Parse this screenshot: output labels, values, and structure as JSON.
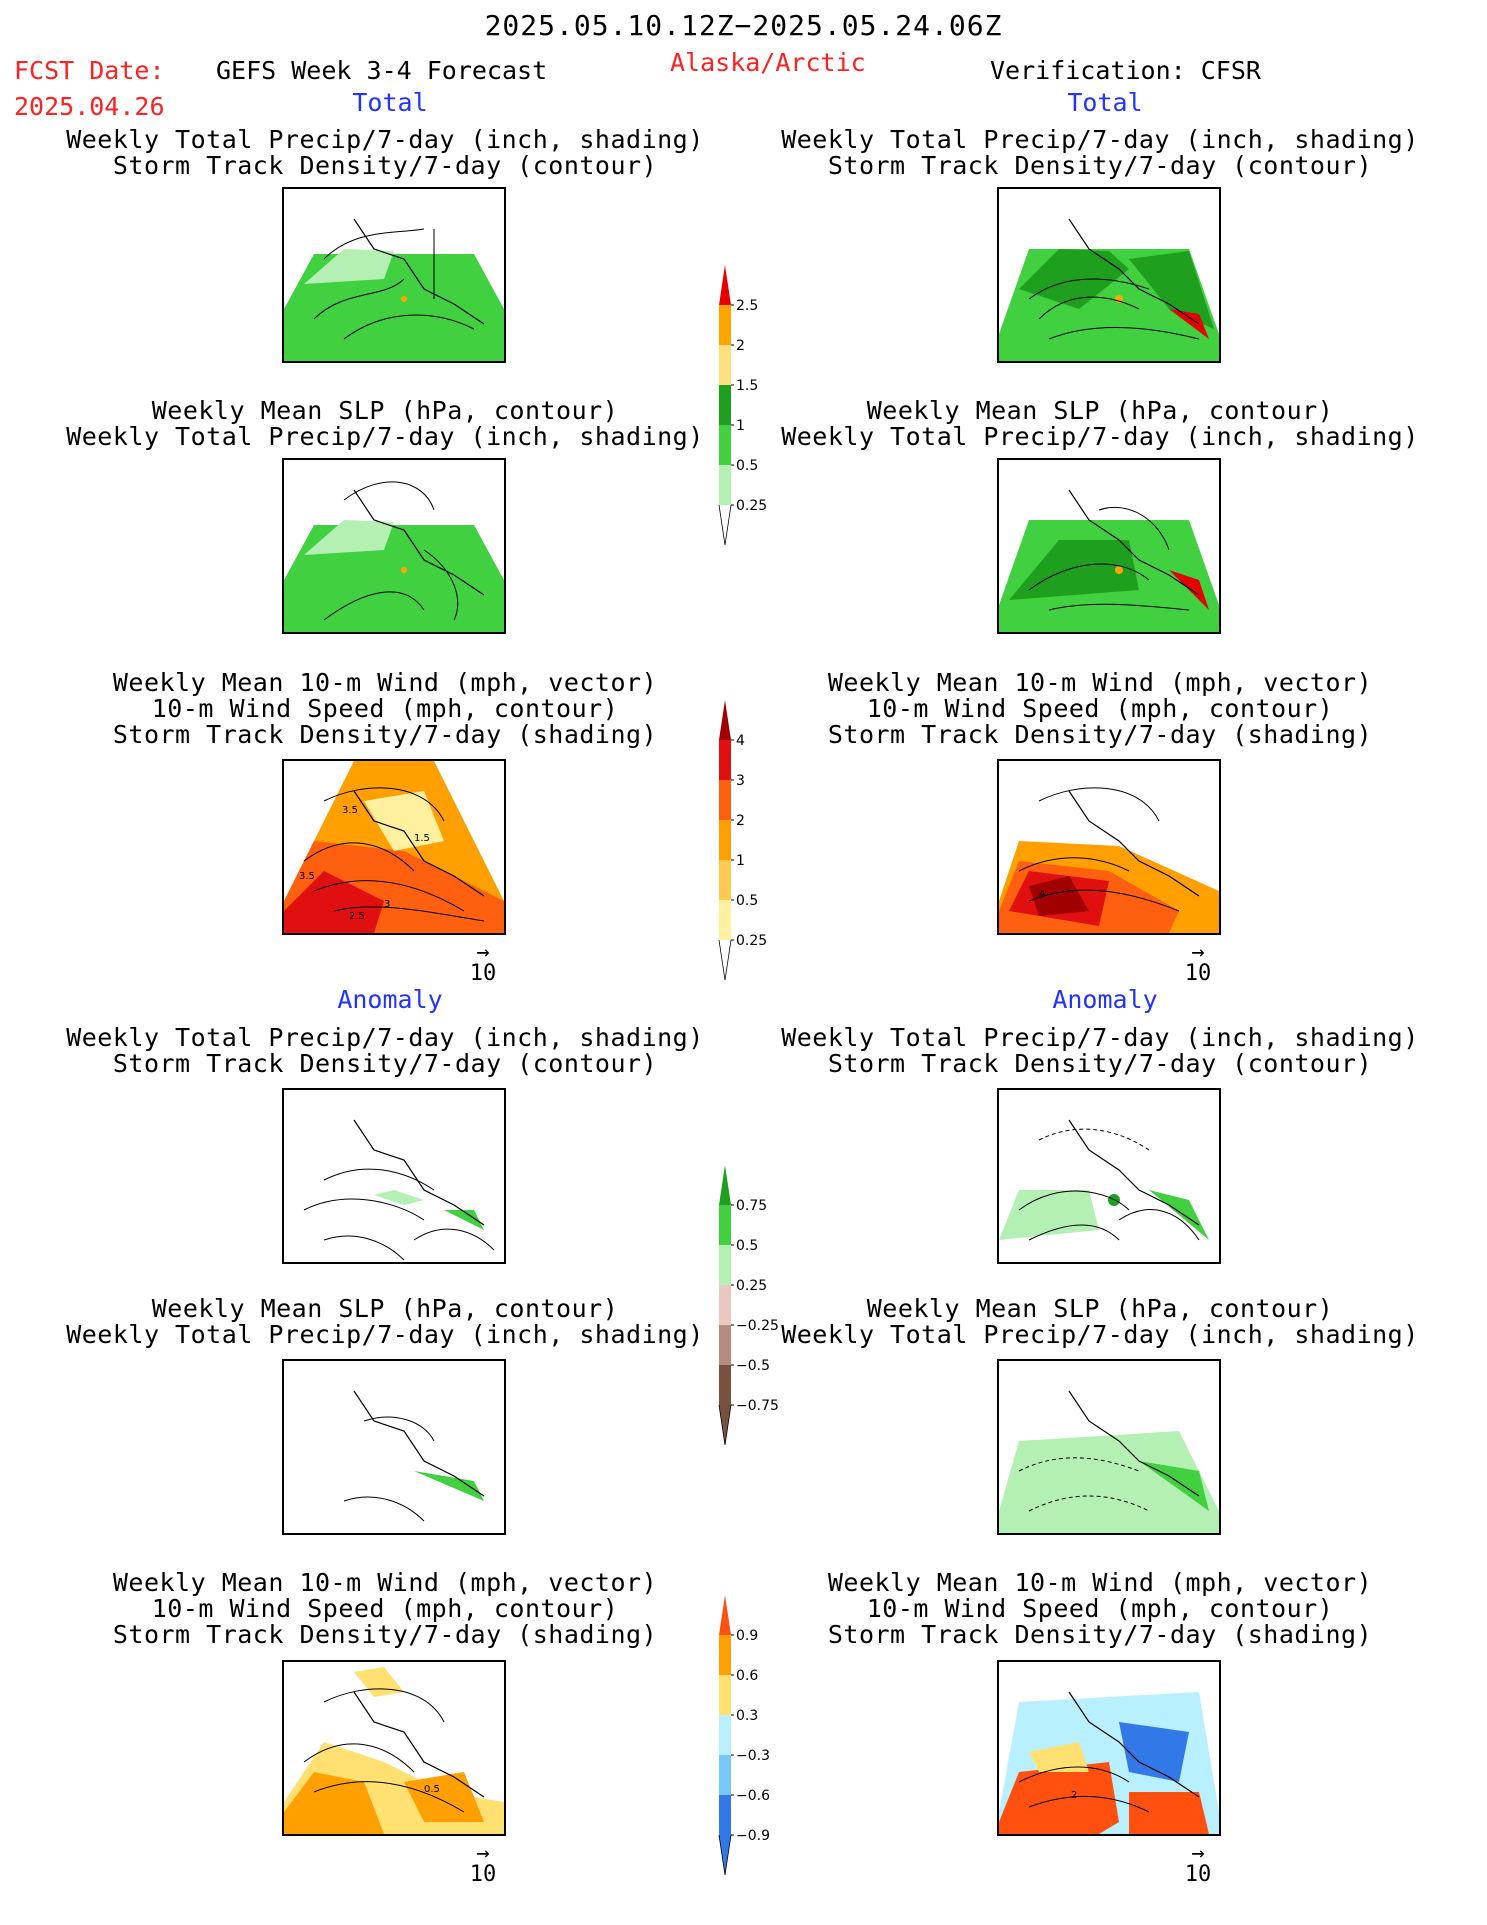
{
  "header": {
    "date_range": "2025.05.10.12Z−2025.05.24.06Z",
    "fcst_label": "FCST Date:",
    "fcst_date": "2025.04.26",
    "model_title": "GEFS Week 3-4 Forecast",
    "region": "Alaska/Arctic",
    "verification": "Verification: CFSR"
  },
  "sections": {
    "total": "Total",
    "anomaly": "Anomaly"
  },
  "panel_titles": {
    "precip_storm": [
      "Weekly Total Precip/7-day (inch, shading)",
      "Storm Track Density/7-day (contour)"
    ],
    "slp_precip": [
      "Weekly Mean SLP (hPa, contour)",
      "Weekly Total Precip/7-day (inch, shading)"
    ],
    "wind_storm": [
      "Weekly Mean 10-m Wind (mph, vector)",
      "10-m Wind Speed (mph, contour)",
      "Storm Track Density/7-day (shading)"
    ]
  },
  "wind_reference": {
    "arrow": "→",
    "label": "10"
  },
  "contour_labels": {
    "total_wind_left": [
      "3.5",
      "1.5",
      "3.5",
      "2.5",
      "3"
    ],
    "total_wind_right": [
      "4"
    ],
    "anom_wind_left": [
      "0.5"
    ],
    "anom_wind_right": [
      "2"
    ]
  },
  "chart_data": [
    {
      "type": "heatmap",
      "name": "Total precipitation colorbar",
      "ticks": [
        "2.5",
        "2",
        "1.5",
        "1",
        "0.5",
        "0.25"
      ],
      "colors": [
        "#e60000",
        "#ffa500",
        "#ffe080",
        "#1ea01e",
        "#40d040",
        "#b4f0b4"
      ]
    },
    {
      "type": "heatmap",
      "name": "Total storm track density colorbar",
      "ticks": [
        "4",
        "3",
        "2",
        "1",
        "0.5",
        "0.25"
      ],
      "colors": [
        "#a00000",
        "#e01010",
        "#ff6010",
        "#ffa000",
        "#ffc850",
        "#fff0a0"
      ]
    },
    {
      "type": "heatmap",
      "name": "Precipitation anomaly colorbar",
      "ticks": [
        "0.75",
        "0.5",
        "0.25",
        "−0.25",
        "−0.5",
        "−0.75"
      ],
      "colors": [
        "#1ea01e",
        "#40d040",
        "#b4f0b4",
        "#e8c8c0",
        "#b48c80",
        "#785040"
      ]
    },
    {
      "type": "heatmap",
      "name": "Storm track density anomaly colorbar",
      "ticks": [
        "0.9",
        "0.6",
        "0.3",
        "−0.3",
        "−0.6",
        "−0.9"
      ],
      "colors": [
        "#ff5010",
        "#ffa000",
        "#ffe070",
        "#b8f0ff",
        "#78c8ff",
        "#3278e6"
      ]
    }
  ],
  "colors": {
    "header_red": "#ff2020",
    "section_blue": "#2233ff"
  }
}
